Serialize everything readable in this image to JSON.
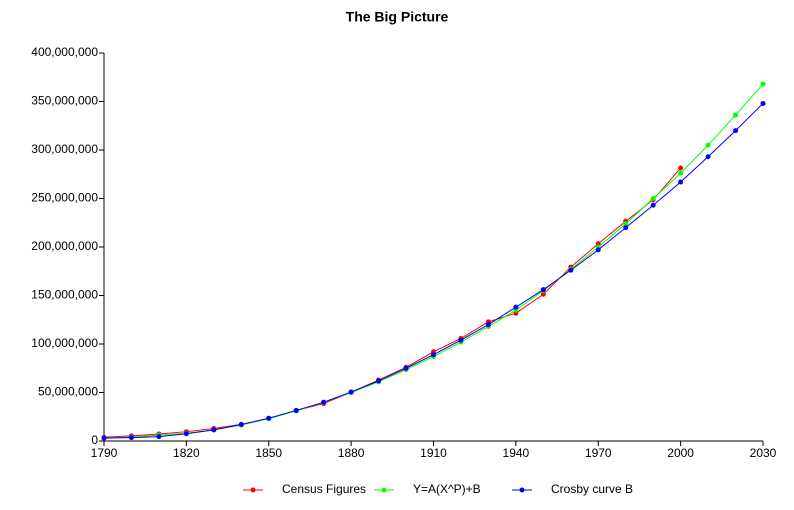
{
  "chart_data": {
    "type": "line",
    "title": "The Big Picture",
    "x": [
      1790,
      1800,
      1810,
      1820,
      1830,
      1840,
      1850,
      1860,
      1870,
      1880,
      1890,
      1900,
      1910,
      1920,
      1930,
      1940,
      1950,
      1960,
      1970,
      1980,
      1990,
      2000,
      2010,
      2020,
      2030
    ],
    "series": [
      {
        "name": "Census Figures",
        "color": "#ff0000",
        "values": [
          3900000,
          5300000,
          7200000,
          9600000,
          12900000,
          17100000,
          23200000,
          31400000,
          38600000,
          50200000,
          62900000,
          76000000,
          92000000,
          105700000,
          122800000,
          131700000,
          151300000,
          179300000,
          203300000,
          226500000,
          248700000,
          281400000,
          null,
          null,
          null
        ]
      },
      {
        "name": "Y=A(X^P)+B",
        "color": "#00ff00",
        "values": [
          3000000,
          4000000,
          6000000,
          8000000,
          11500000,
          16500000,
          23000000,
          31000000,
          40000000,
          50000000,
          61000000,
          73500000,
          87000000,
          102000000,
          118000000,
          135000000,
          155000000,
          177000000,
          200000000,
          224000000,
          250000000,
          276000000,
          305000000,
          336000000,
          368000000
        ]
      },
      {
        "name": "Crosby curve B",
        "color": "#0000ff",
        "values": [
          3000000,
          3500000,
          4500000,
          7500000,
          11500000,
          17000000,
          23500000,
          31500000,
          40000000,
          50500000,
          62000000,
          75000000,
          89000000,
          104000000,
          120000000,
          138000000,
          156000000,
          176000000,
          197000000,
          220000000,
          243000000,
          267000000,
          293000000,
          320000000,
          348000000
        ]
      }
    ],
    "xlim": [
      1790,
      2030
    ],
    "xticks": [
      1790,
      1820,
      1850,
      1880,
      1910,
      1940,
      1970,
      2000,
      2030
    ],
    "ylim": [
      0,
      400000000
    ],
    "yticks": [
      0,
      {
        "value": 50000000,
        "label": "50,000,000"
      },
      {
        "value": 100000000,
        "label": "100,000,000"
      },
      {
        "value": 150000000,
        "label": "150,000,000"
      },
      {
        "value": 200000000,
        "label": "200,000,000"
      },
      {
        "value": 250000000,
        "label": "250,000,000"
      },
      {
        "value": 300000000,
        "label": "300,000,000"
      },
      {
        "value": 350000000,
        "label": "350,000,000"
      },
      {
        "value": 400000000,
        "label": "400,000,000"
      }
    ],
    "grid": false,
    "legend": "bottom"
  }
}
